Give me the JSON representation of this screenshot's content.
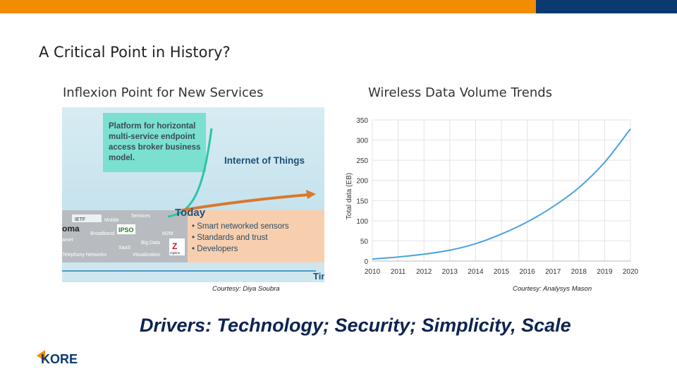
{
  "header": {
    "accent": "#f28c00",
    "navy": "#0b3a6e"
  },
  "slide": {
    "title": "A Critical Point in History?",
    "left_subtitle": "Inflexion Point for New Services",
    "right_subtitle": "Wireless Data Volume Trends",
    "left_courtesy": "Courtesy: Diya Soubra",
    "right_courtesy": "Courtesy: Analysys Mason",
    "drivers": "Drivers: Technology; Security; Simplicity, Scale",
    "logo_text": "KORE"
  },
  "iot_figure": {
    "box_lines": [
      "Platform for horizontal",
      "multi-service endpoint",
      "access broker business",
      "model."
    ],
    "iot_label": "Internet of Things",
    "today_label": "Today",
    "bullets": [
      "Smart networked sensors",
      "Standards and trust",
      "Developers"
    ],
    "past_labels": [
      "IETF",
      "Mobile",
      "Services",
      "oma",
      "Broadband",
      "IPSO",
      "amet",
      "M2M",
      "SaaS",
      "Big Data",
      "Telephony Networks",
      "Visualization",
      "ZigBee"
    ],
    "time_label": "Tim"
  },
  "chart_data": {
    "type": "line",
    "title": "",
    "xlabel": "",
    "ylabel": "Total data (EB)",
    "x": [
      2010,
      2011,
      2012,
      2013,
      2014,
      2015,
      2016,
      2017,
      2018,
      2019,
      2020
    ],
    "values": [
      5,
      10,
      17,
      27,
      43,
      67,
      97,
      135,
      182,
      245,
      328
    ],
    "ylim": [
      0,
      350
    ],
    "yticks": [
      0,
      50,
      100,
      150,
      200,
      250,
      300,
      350
    ],
    "xticks": [
      "2010",
      "2011",
      "2012",
      "2013",
      "2014",
      "2015",
      "2016",
      "2017",
      "2018",
      "2019",
      "2020"
    ],
    "grid": true,
    "color": "#4aa3df"
  }
}
